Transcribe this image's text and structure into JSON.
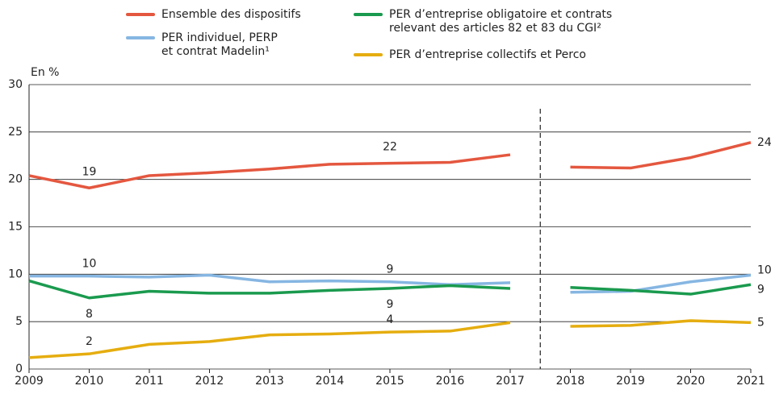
{
  "chart_data": {
    "type": "line",
    "y_label": "En %",
    "x": [
      2009,
      2010,
      2011,
      2012,
      2013,
      2014,
      2015,
      2016,
      2017,
      2018,
      2019,
      2020,
      2021
    ],
    "xlim": [
      2009,
      2021
    ],
    "xticks": [
      2009,
      2010,
      2011,
      2012,
      2013,
      2014,
      2015,
      2016,
      2017,
      2018,
      2019,
      2020,
      2021
    ],
    "ylim": [
      0,
      30
    ],
    "yticks": [
      0,
      5,
      10,
      15,
      20,
      25,
      30
    ],
    "grid": true,
    "break_x": 2017.5,
    "series": [
      {
        "name": "Ensemble des dispositifs",
        "color": "#e4573f",
        "values": [
          20.4,
          19.1,
          20.4,
          20.7,
          21.1,
          21.6,
          21.7,
          21.8,
          22.6,
          21.3,
          21.2,
          22.3,
          23.9
        ],
        "value_labels": [
          null,
          "19",
          null,
          null,
          null,
          null,
          "22",
          null,
          null,
          null,
          null,
          null,
          "24"
        ]
      },
      {
        "name": "PER individuel, PERP\net contrat Madelin¹",
        "color": "#86b6e2",
        "values": [
          9.8,
          9.8,
          9.7,
          9.9,
          9.2,
          9.3,
          9.2,
          8.9,
          9.1,
          8.1,
          8.2,
          9.2,
          9.9
        ],
        "value_labels": [
          null,
          "10",
          null,
          null,
          null,
          null,
          "9",
          null,
          null,
          null,
          null,
          null,
          "10"
        ]
      },
      {
        "name": "PER d’entreprise obligatoire et contrats\nrelevant des articles 82 et 83 du CGI²",
        "color": "#1a9a4e",
        "values": [
          9.3,
          7.5,
          8.2,
          8.0,
          8.0,
          8.3,
          8.5,
          8.8,
          8.5,
          8.6,
          8.3,
          7.9,
          8.9
        ],
        "value_labels": [
          null,
          "8",
          null,
          null,
          null,
          null,
          "9",
          null,
          null,
          null,
          null,
          null,
          "9"
        ]
      },
      {
        "name": "PER d’entreprise collectifs et Perco",
        "color": "#e5ad0f",
        "values": [
          1.2,
          1.6,
          2.6,
          2.9,
          3.6,
          3.7,
          3.9,
          4.0,
          4.9,
          4.5,
          4.6,
          5.1,
          4.9
        ],
        "value_labels": [
          null,
          "2",
          null,
          null,
          null,
          null,
          "4",
          null,
          null,
          null,
          null,
          null,
          "5"
        ]
      }
    ]
  }
}
